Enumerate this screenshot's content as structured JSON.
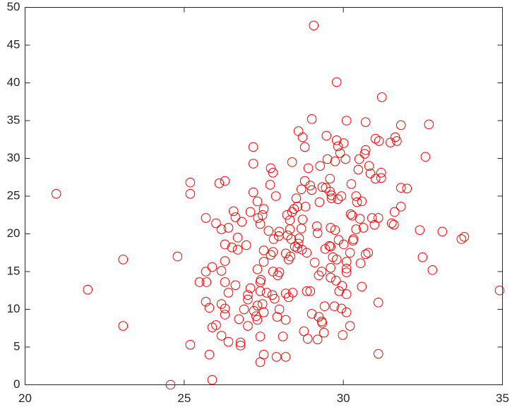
{
  "chart_data": {
    "type": "scatter",
    "color": "#ff0000",
    "xlim": [
      20,
      35
    ],
    "ylim": [
      0,
      50
    ],
    "xticks": [
      20,
      25,
      30,
      35
    ],
    "yticks": [
      0,
      5,
      10,
      15,
      20,
      25,
      30,
      35,
      40,
      45,
      50
    ],
    "x": [
      20.98,
      21.97,
      23.08,
      23.08,
      24.57,
      24.79,
      25.19,
      25.19,
      25.19,
      25.48,
      25.68,
      25.68,
      25.68,
      25.7,
      25.79,
      25.79,
      25.88,
      25.88,
      25.88,
      26.0,
      26.0,
      26.1,
      26.17,
      26.17,
      26.17,
      26.17,
      26.28,
      26.28,
      26.28,
      26.28,
      26.28,
      26.28,
      26.39,
      26.39,
      26.39,
      26.5,
      26.55,
      26.61,
      26.61,
      26.68,
      26.68,
      26.72,
      26.77,
      26.77,
      26.81,
      26.88,
      26.95,
      27.0,
      27.0,
      27.0,
      27.08,
      27.08,
      27.17,
      27.17,
      27.17,
      27.19,
      27.26,
      27.3,
      27.3,
      27.3,
      27.3,
      27.32,
      27.39,
      27.39,
      27.41,
      27.39,
      27.39,
      27.39,
      27.46,
      27.46,
      27.5,
      27.5,
      27.5,
      27.5,
      27.5,
      27.59,
      27.65,
      27.7,
      27.72,
      27.72,
      27.77,
      27.79,
      27.79,
      27.79,
      27.81,
      27.84,
      27.88,
      27.9,
      27.92,
      27.94,
      27.97,
      27.99,
      27.99,
      27.99,
      28.1,
      28.19,
      28.19,
      28.19,
      28.19,
      28.23,
      28.25,
      28.28,
      28.28,
      28.32,
      28.32,
      28.34,
      28.36,
      28.39,
      28.39,
      28.41,
      28.45,
      28.48,
      28.52,
      28.56,
      28.56,
      28.59,
      28.59,
      28.61,
      28.68,
      28.68,
      28.7,
      28.72,
      28.72,
      28.76,
      28.79,
      28.79,
      28.81,
      28.85,
      28.85,
      28.88,
      28.9,
      28.96,
      28.96,
      29.01,
      29.01,
      29.01,
      29.07,
      29.1,
      29.17,
      29.19,
      29.19,
      29.23,
      29.23,
      29.25,
      29.27,
      29.32,
      29.32,
      29.34,
      29.34,
      29.39,
      29.41,
      29.43,
      29.45,
      29.47,
      29.5,
      29.56,
      29.58,
      29.58,
      29.6,
      29.6,
      29.6,
      29.6,
      29.63,
      29.63,
      29.67,
      29.72,
      29.74,
      29.74,
      29.77,
      29.79,
      29.79,
      29.79,
      29.83,
      29.83,
      29.85,
      29.87,
      29.9,
      29.94,
      29.94,
      29.96,
      29.98,
      30.01,
      30.01,
      30.07,
      30.1,
      30.1,
      30.1,
      30.1,
      30.1,
      30.1,
      30.21,
      30.21,
      30.23,
      30.25,
      30.28,
      30.3,
      30.32,
      30.4,
      30.4,
      30.43,
      30.47,
      30.5,
      30.52,
      30.54,
      30.58,
      30.58,
      30.63,
      30.67,
      30.7,
      30.7,
      30.7,
      30.78,
      30.81,
      30.85,
      30.9,
      30.98,
      31.01,
      31.01,
      31.1,
      31.1,
      31.1,
      31.12,
      31.19,
      31.19,
      31.21,
      31.48,
      31.52,
      31.59,
      31.61,
      31.63,
      31.68,
      31.81,
      31.81,
      31.81,
      32.0,
      32.4,
      32.49,
      32.58,
      32.69,
      32.8,
      33.11,
      33.71,
      33.8,
      34.91
    ],
    "values": [
      25.3,
      12.6,
      16.6,
      7.8,
      0.0,
      17.0,
      26.8,
      25.3,
      5.3,
      13.6,
      22.1,
      15.0,
      11.0,
      13.6,
      10.2,
      4.0,
      15.6,
      7.6,
      0.65,
      21.4,
      7.9,
      26.7,
      20.6,
      15.1,
      10.7,
      6.5,
      27.0,
      18.6,
      16.4,
      13.6,
      10.1,
      9.3,
      20.8,
      12.2,
      5.7,
      18.2,
      23.0,
      22.2,
      13.2,
      17.9,
      19.5,
      8.7,
      5.6,
      5.2,
      21.6,
      10.0,
      18.5,
      7.8,
      11.9,
      11.3,
      22.9,
      12.8,
      31.5,
      29.3,
      25.5,
      9.8,
      9.1,
      10.5,
      8.6,
      15.3,
      24.3,
      22.1,
      3.0,
      13.6,
      13.9,
      12.4,
      21.3,
      6.4,
      22.5,
      10.7,
      4.0,
      23.3,
      17.8,
      9.6,
      16.3,
      12.2,
      20.4,
      26.5,
      28.7,
      17.2,
      11.9,
      28.1,
      17.6,
      15.0,
      19.3,
      11.4,
      25.0,
      3.7,
      9.0,
      14.5,
      19.7,
      14.9,
      20.3,
      10.0,
      6.4,
      17.4,
      12.1,
      8.6,
      3.7,
      22.5,
      19.8,
      16.6,
      11.6,
      21.8,
      20.6,
      17.0,
      19.3,
      29.5,
      22.9,
      12.2,
      23.3,
      18.3,
      24.7,
      18.1,
      23.6,
      33.6,
      18.7,
      19.4,
      25.9,
      20.7,
      17.9,
      21.9,
      32.8,
      7.1,
      31.5,
      27.0,
      23.6,
      17.5,
      12.4,
      6.1,
      28.7,
      26.4,
      12.4,
      35.2,
      25.8,
      9.4,
      47.6,
      16.2,
      21.0,
      20.1,
      6.0,
      14.5,
      9.0,
      24.2,
      29.0,
      15.0,
      8.4,
      26.2,
      8.2,
      6.9,
      10.4,
      18.0,
      26.1,
      33.0,
      29.9,
      18.4,
      25.6,
      27.3,
      20.8,
      15.5,
      14.2,
      18.3,
      25.1,
      24.7,
      16.9,
      10.4,
      29.6,
      20.5,
      13.8,
      40.1,
      32.4,
      16.6,
      31.6,
      24.6,
      19.2,
      12.4,
      30.7,
      25.0,
      10.1,
      13.1,
      6.6,
      18.6,
      32.0,
      29.9,
      16.3,
      14.9,
      15.4,
      12.0,
      9.6,
      35.0,
      17.5,
      7.8,
      22.6,
      26.6,
      22.4,
      19.1,
      19.3,
      20.6,
      25.0,
      24.2,
      28.5,
      29.9,
      22.0,
      16.1,
      24.3,
      13.0,
      20.8,
      30.6,
      31.1,
      34.8,
      17.3,
      17.5,
      29.0,
      28.0,
      22.1,
      21.2,
      27.3,
      32.6,
      22.1,
      10.9,
      4.1,
      32.3,
      28.1,
      27.4,
      38.1,
      32.1,
      21.4,
      21.2,
      22.9,
      32.8,
      32.3,
      34.4,
      23.6,
      26.1,
      26.0,
      20.5,
      16.9,
      30.2,
      34.5,
      15.2,
      20.3,
      19.3,
      19.6,
      12.5
    ]
  }
}
